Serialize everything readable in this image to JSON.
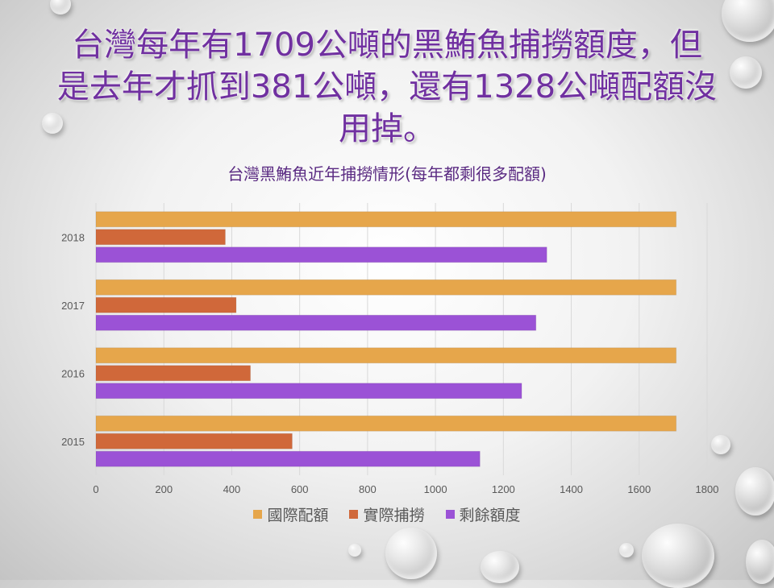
{
  "slide": {
    "title": "台灣每年有1709公噸的黑鮪魚捕撈額度，但是去年才抓到381公噸，還有1328公噸配額沒用掉。"
  },
  "chart_data": {
    "type": "bar",
    "orientation": "horizontal",
    "title": "台灣黑鮪魚近年捕撈情形(每年都剩很多配額)",
    "categories": [
      "2015",
      "2016",
      "2017",
      "2018"
    ],
    "series": [
      {
        "name": "國際配額",
        "color": "#e6a64b",
        "values": [
          1709,
          1709,
          1709,
          1709
        ]
      },
      {
        "name": "實際捕撈",
        "color": "#d0683a",
        "values": [
          578,
          455,
          413,
          381
        ]
      },
      {
        "name": "剩餘額度",
        "color": "#9b52d6",
        "values": [
          1131,
          1254,
          1296,
          1328
        ]
      }
    ],
    "xlim": [
      0,
      1800
    ],
    "xticks": [
      0,
      200,
      400,
      600,
      800,
      1000,
      1200,
      1400,
      1600,
      1800
    ],
    "grid": true,
    "legend": "bottom"
  }
}
